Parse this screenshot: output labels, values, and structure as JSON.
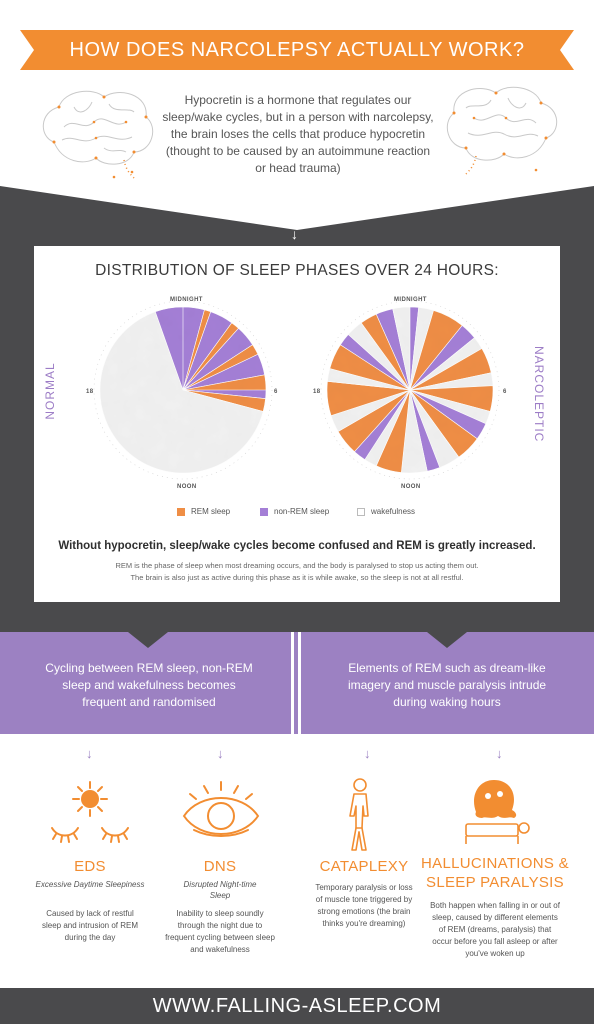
{
  "banner": {
    "title": "HOW DOES NARCOLEPSY ACTUALLY WORK?"
  },
  "intro": {
    "text": "Hypocretin is a hormone that regulates our sleep/wake cycles, but in a person with narcolepsy, the brain loses the cells that produce hypocretin (thought to be caused by an autoimmune reaction or head trauma)"
  },
  "chart": {
    "title": "DISTRIBUTION OF SLEEP PHASES OVER 24 HOURS:",
    "clock_labels": {
      "top": "MIDNIGHT",
      "bottom": "NOON",
      "left": "18",
      "right": "6"
    },
    "normal_label": "NORMAL",
    "narcoleptic_label": "NARCOLEPTIC",
    "legend": [
      "REM sleep",
      "non-REM sleep",
      "wakefulness"
    ],
    "summary": "Without hypocretin, sleep/wake cycles become confused and REM is greatly increased.",
    "detail_line1": "REM is the phase of sleep when most dreaming occurs, and the body is paralysed to stop us acting them out.",
    "detail_line2": "The brain is also just as active during this phase as it is while awake, so the sleep is not at all restful."
  },
  "colors": {
    "orange": "#f28d31",
    "purple": "#9c81c2",
    "dark": "#4a4a4c",
    "rem": "#ef8e45",
    "nonrem": "#a47fd6"
  },
  "chart_data": [
    {
      "type": "pie",
      "name": "NORMAL",
      "unit": "hours",
      "segments": [
        {
          "phase": "non-REM",
          "start": 0,
          "end": 1.0
        },
        {
          "phase": "REM",
          "start": 1.0,
          "end": 1.3
        },
        {
          "phase": "non-REM",
          "start": 1.3,
          "end": 2.4
        },
        {
          "phase": "REM",
          "start": 2.4,
          "end": 2.8
        },
        {
          "phase": "non-REM",
          "start": 2.8,
          "end": 3.8
        },
        {
          "phase": "REM",
          "start": 3.8,
          "end": 4.3
        },
        {
          "phase": "non-REM",
          "start": 4.3,
          "end": 5.3
        },
        {
          "phase": "REM",
          "start": 5.3,
          "end": 6.0
        },
        {
          "phase": "non-REM",
          "start": 6.0,
          "end": 6.4
        },
        {
          "phase": "REM",
          "start": 6.4,
          "end": 7.0
        },
        {
          "phase": "wakefulness",
          "start": 7.0,
          "end": 22.7
        },
        {
          "phase": "non-REM",
          "start": 22.7,
          "end": 24.0
        }
      ]
    },
    {
      "type": "pie",
      "name": "NARCOLEPTIC",
      "unit": "hours",
      "segments": [
        {
          "phase": "non-REM",
          "start": 0,
          "end": 0.4
        },
        {
          "phase": "wakefulness",
          "start": 0.4,
          "end": 1.1
        },
        {
          "phase": "REM",
          "start": 1.1,
          "end": 2.6
        },
        {
          "phase": "non-REM",
          "start": 2.6,
          "end": 3.4
        },
        {
          "phase": "wakefulness",
          "start": 3.4,
          "end": 4.0
        },
        {
          "phase": "REM",
          "start": 4.0,
          "end": 5.2
        },
        {
          "phase": "wakefulness",
          "start": 5.2,
          "end": 5.8
        },
        {
          "phase": "REM",
          "start": 5.8,
          "end": 7.0
        },
        {
          "phase": "wakefulness",
          "start": 7.0,
          "end": 7.6
        },
        {
          "phase": "non-REM",
          "start": 7.6,
          "end": 8.4
        },
        {
          "phase": "REM",
          "start": 8.4,
          "end": 9.6
        },
        {
          "phase": "wakefulness",
          "start": 9.6,
          "end": 10.6
        },
        {
          "phase": "non-REM",
          "start": 10.6,
          "end": 11.2
        },
        {
          "phase": "wakefulness",
          "start": 11.2,
          "end": 12.4
        },
        {
          "phase": "REM",
          "start": 12.4,
          "end": 13.6
        },
        {
          "phase": "wakefulness",
          "start": 13.6,
          "end": 14.2
        },
        {
          "phase": "non-REM",
          "start": 14.2,
          "end": 14.8
        },
        {
          "phase": "REM",
          "start": 14.8,
          "end": 16.0
        },
        {
          "phase": "wakefulness",
          "start": 16.0,
          "end": 16.8
        },
        {
          "phase": "REM",
          "start": 16.8,
          "end": 18.4
        },
        {
          "phase": "wakefulness",
          "start": 18.4,
          "end": 19.0
        },
        {
          "phase": "REM",
          "start": 19.0,
          "end": 20.2
        },
        {
          "phase": "non-REM",
          "start": 20.2,
          "end": 20.8
        },
        {
          "phase": "wakefulness",
          "start": 20.8,
          "end": 21.6
        },
        {
          "phase": "REM",
          "start": 21.6,
          "end": 22.4
        },
        {
          "phase": "non-REM",
          "start": 22.4,
          "end": 23.2
        },
        {
          "phase": "wakefulness",
          "start": 23.2,
          "end": 24.0
        }
      ]
    }
  ],
  "effects": {
    "left": "Cycling between REM sleep, non-REM sleep and wakefulness becomes frequent and randomised",
    "right": "Elements of REM such as dream-like imagery and muscle paralysis intrude during waking hours"
  },
  "categories": [
    {
      "title": "EDS",
      "subtitle": "Excessive Daytime Sleepiness",
      "desc": "Caused by lack of restful sleep and intrusion of REM during the day",
      "icon": "sun-sleepy-eyes-icon"
    },
    {
      "title": "DNS",
      "subtitle": "Disrupted Night-time Sleep",
      "desc": "Inability to sleep soundly through the night due to frequent cycling between sleep and wakefulness",
      "icon": "eye-moon-icon"
    },
    {
      "title": "CATAPLEXY",
      "subtitle": "",
      "desc": "Temporary paralysis or loss of muscle tone triggered by strong emotions (the brain thinks you're dreaming)",
      "icon": "falling-person-icon"
    },
    {
      "title": "HALLUCINATIONS & SLEEP PARALYSIS",
      "subtitle": "",
      "desc": "Both happen when falling in or out of sleep, caused by different elements of REM (dreams, paralysis) that occur before you fall asleep or after you've woken up",
      "icon": "ghost-bed-icon"
    }
  ],
  "footer": {
    "url": "WWW.FALLING-ASLEEP.COM"
  }
}
